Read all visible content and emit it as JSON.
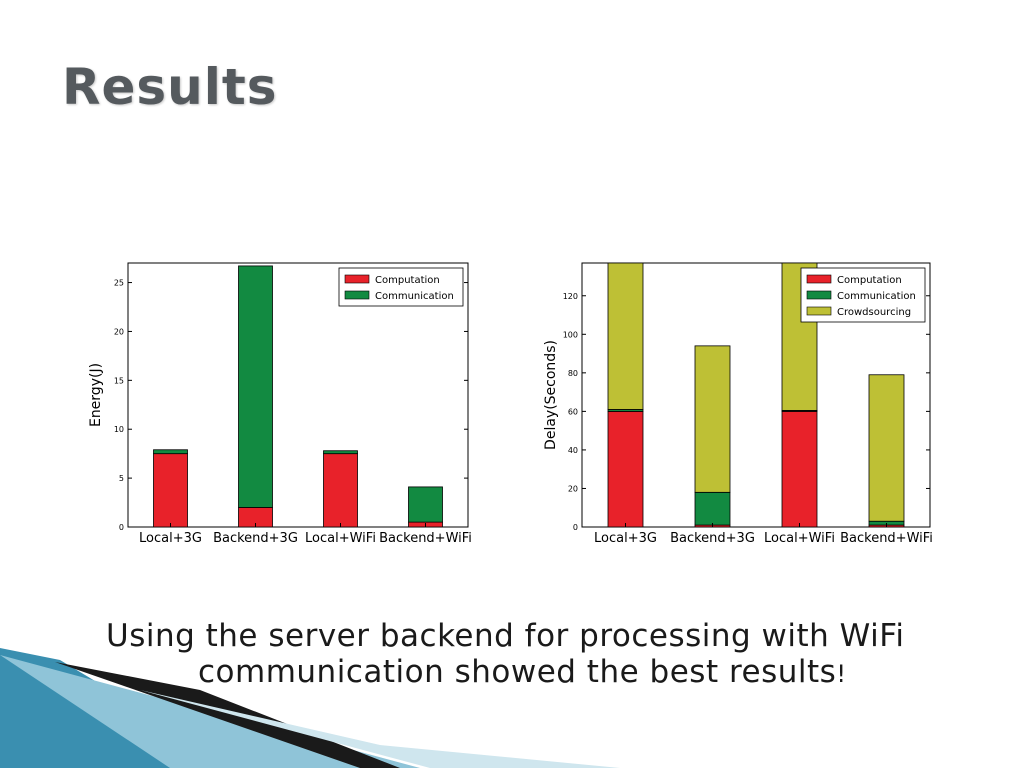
{
  "slide": {
    "title": "Results",
    "caption_line1": "Using the server backend for processing with WiFi",
    "caption_line2": "communication showed the best results",
    "caption_end": "!"
  },
  "colors": {
    "computation": "#e8222a",
    "communication": "#128a41",
    "crowdsourcing": "#bec035"
  },
  "chart_data": [
    {
      "type": "bar",
      "stacked": true,
      "categories": [
        "Local+3G",
        "Backend+3G",
        "Local+WiFi",
        "Backend+WiFi"
      ],
      "ylabel": "Energy(J)",
      "xlabel": "",
      "ylim": [
        0,
        27
      ],
      "yticks": [
        0,
        5,
        10,
        15,
        20,
        25
      ],
      "legend": "top-right",
      "series": [
        {
          "name": "Computation",
          "values": [
            7.5,
            2.0,
            7.5,
            0.5
          ]
        },
        {
          "name": "Communication",
          "values": [
            0.4,
            24.7,
            0.3,
            3.6
          ]
        }
      ]
    },
    {
      "type": "bar",
      "stacked": true,
      "categories": [
        "Local+3G",
        "Backend+3G",
        "Local+WiFi",
        "Backend+WiFi"
      ],
      "ylabel": "Delay(Seconds)",
      "xlabel": "",
      "ylim": [
        0,
        137
      ],
      "yticks": [
        0,
        20,
        40,
        60,
        80,
        100,
        120
      ],
      "legend": "top-right",
      "series": [
        {
          "name": "Computation",
          "values": [
            60,
            1,
            60,
            1
          ]
        },
        {
          "name": "Communication",
          "values": [
            1,
            17,
            0.5,
            2
          ]
        },
        {
          "name": "Crowdsourcing",
          "values": [
            76,
            76,
            76.5,
            76
          ]
        }
      ]
    }
  ]
}
